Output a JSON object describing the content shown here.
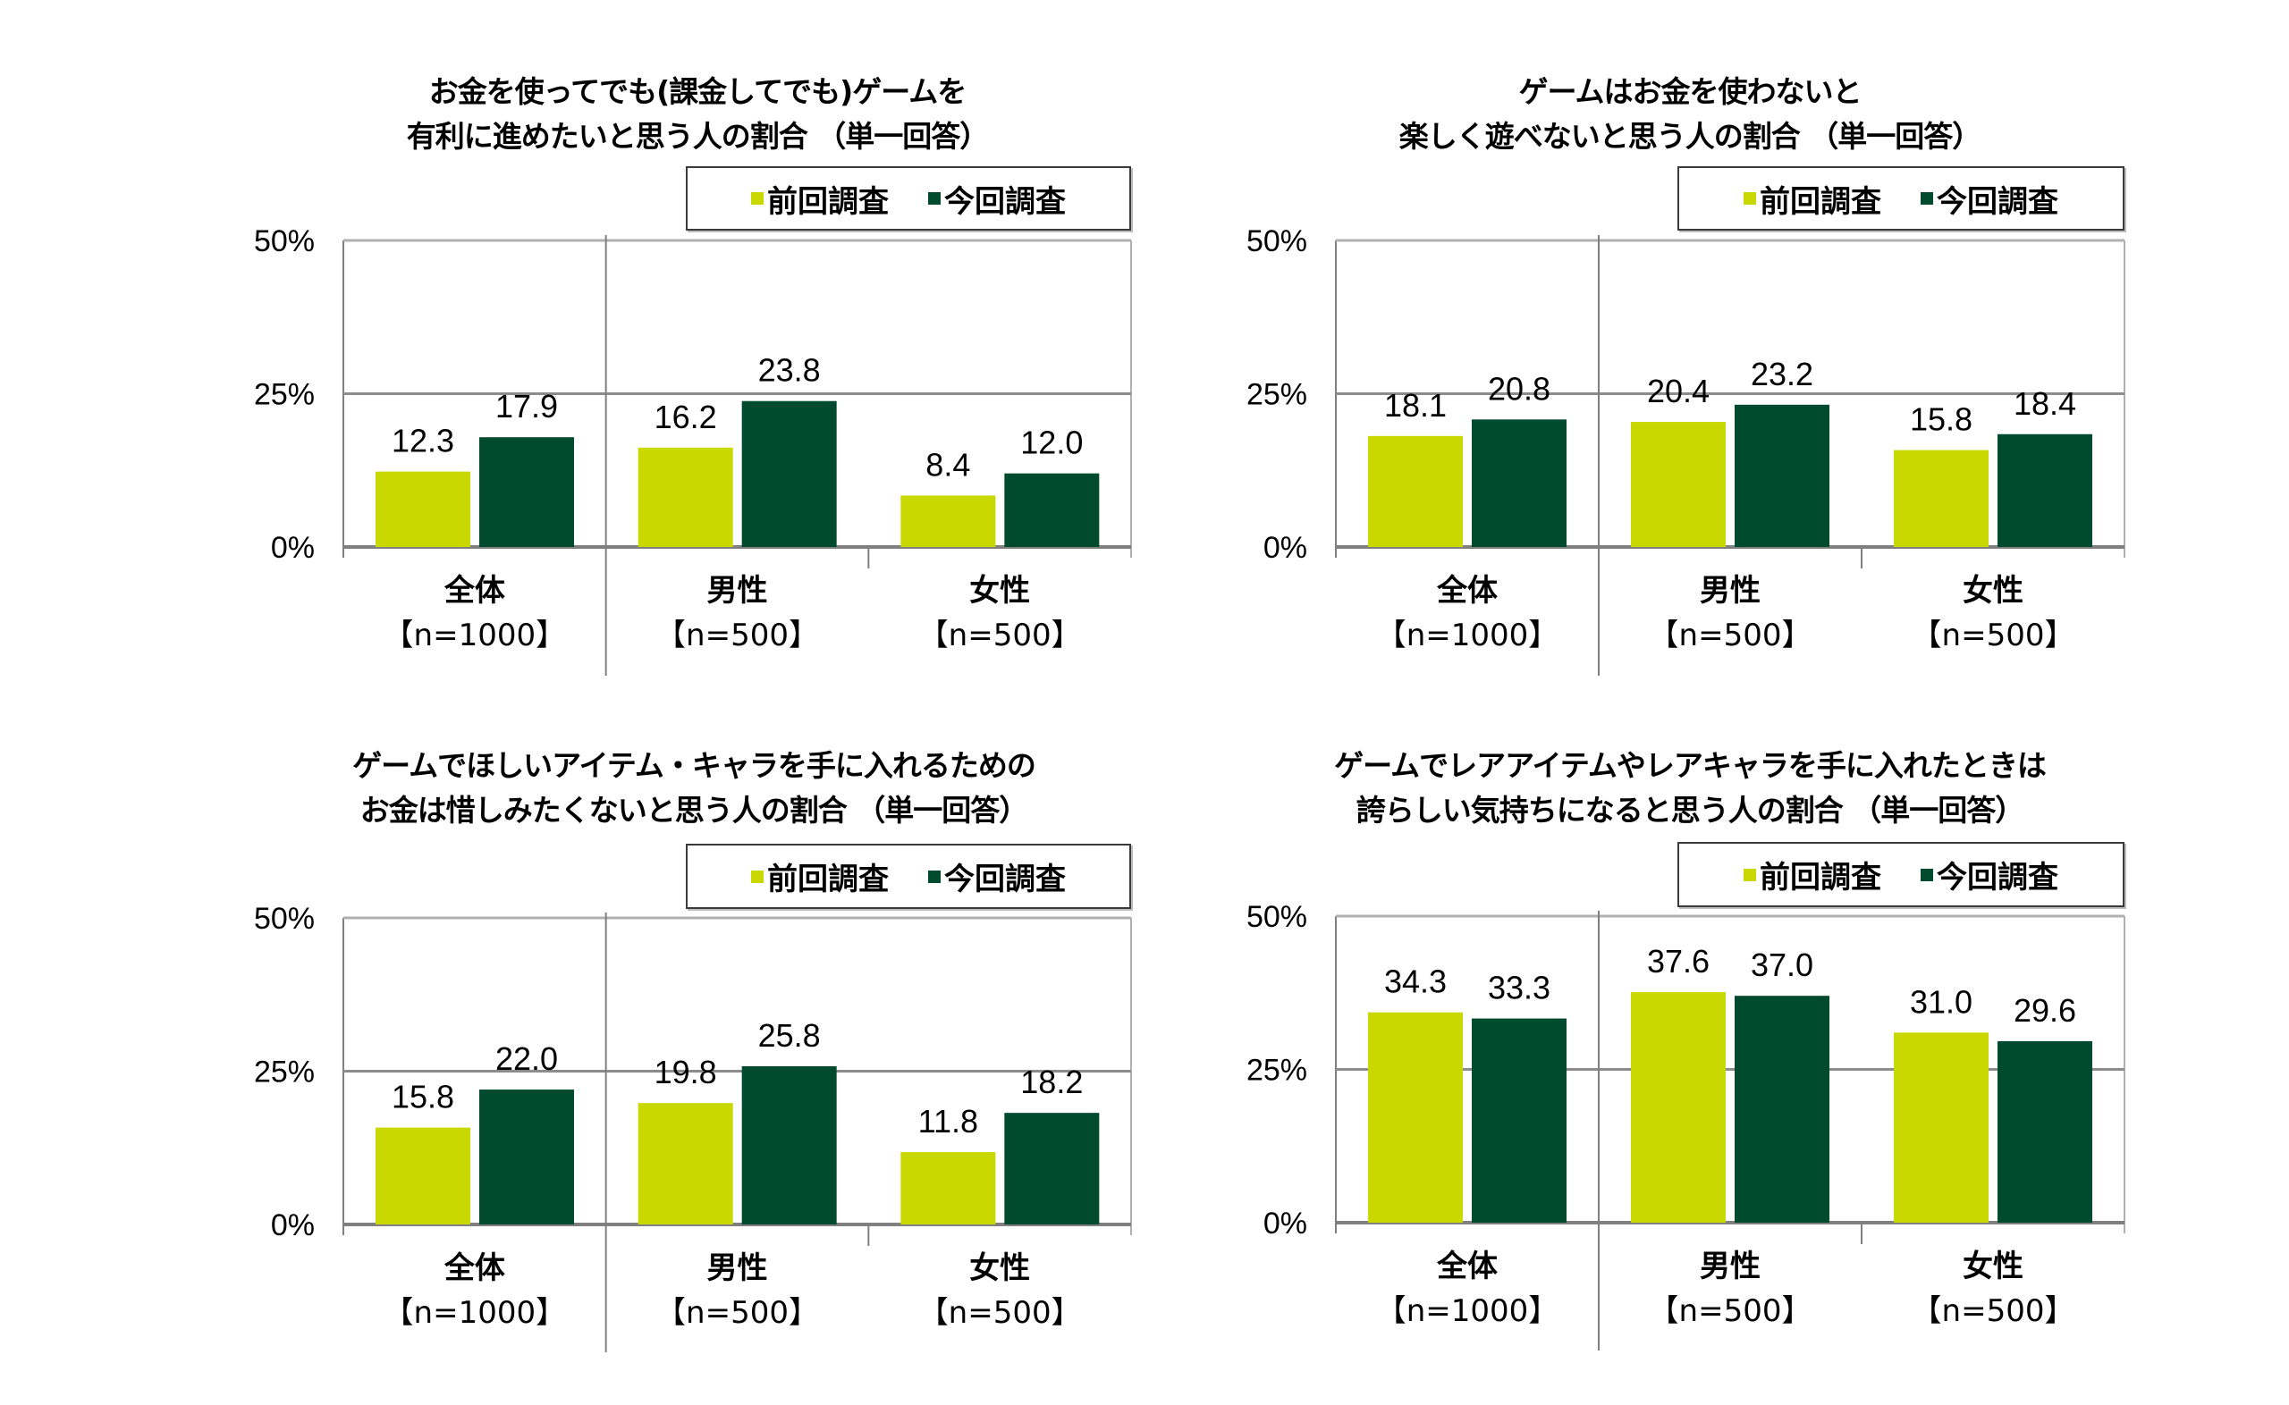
{
  "colors": {
    "previous": "#c8d800",
    "current": "#004a30",
    "grid": "#8c8c8c",
    "axis": "#7f7f7f"
  },
  "legend": {
    "previous": "前回調査",
    "current": "今回調査"
  },
  "chart_data": [
    {
      "type": "bar",
      "title_lines": [
        "お金を使ってでも(課金してでも)ゲームを",
        "有利に進めたいと思う人の割合 （単一回答）"
      ],
      "categories": [
        "全体",
        "男性",
        "女性"
      ],
      "category_n": [
        "【n=1000】",
        "【n=500】",
        "【n=500】"
      ],
      "series": [
        {
          "name": "前回調査",
          "values": [
            12.3,
            16.2,
            8.4
          ],
          "labels": [
            "12.3",
            "16.2",
            "8.4"
          ]
        },
        {
          "name": "今回調査",
          "values": [
            17.9,
            23.8,
            12.0
          ],
          "labels": [
            "17.9",
            "23.8",
            "12.0"
          ]
        }
      ],
      "yticks": [
        0,
        25,
        50
      ],
      "ytick_labels": [
        "0%",
        "25%",
        "50%"
      ],
      "ylim": [
        0,
        50
      ],
      "grid": true,
      "legend_position": "top-right"
    },
    {
      "type": "bar",
      "title_lines": [
        "ゲームはお金を使わないと",
        "楽しく遊べないと思う人の割合 （単一回答）"
      ],
      "categories": [
        "全体",
        "男性",
        "女性"
      ],
      "category_n": [
        "【n=1000】",
        "【n=500】",
        "【n=500】"
      ],
      "series": [
        {
          "name": "前回調査",
          "values": [
            18.1,
            20.4,
            15.8
          ],
          "labels": [
            "18.1",
            "20.4",
            "15.8"
          ]
        },
        {
          "name": "今回調査",
          "values": [
            20.8,
            23.2,
            18.4
          ],
          "labels": [
            "20.8",
            "23.2",
            "18.4"
          ]
        }
      ],
      "yticks": [
        0,
        25,
        50
      ],
      "ytick_labels": [
        "0%",
        "25%",
        "50%"
      ],
      "ylim": [
        0,
        50
      ],
      "grid": true,
      "legend_position": "top-right"
    },
    {
      "type": "bar",
      "title_lines": [
        "ゲームでほしいアイテム・キャラを手に入れるための",
        "お金は惜しみたくないと思う人の割合 （単一回答）"
      ],
      "categories": [
        "全体",
        "男性",
        "女性"
      ],
      "category_n": [
        "【n=1000】",
        "【n=500】",
        "【n=500】"
      ],
      "series": [
        {
          "name": "前回調査",
          "values": [
            15.8,
            19.8,
            11.8
          ],
          "labels": [
            "15.8",
            "19.8",
            "11.8"
          ]
        },
        {
          "name": "今回調査",
          "values": [
            22.0,
            25.8,
            18.2
          ],
          "labels": [
            "22.0",
            "25.8",
            "18.2"
          ]
        }
      ],
      "yticks": [
        0,
        25,
        50
      ],
      "ytick_labels": [
        "0%",
        "25%",
        "50%"
      ],
      "ylim": [
        0,
        50
      ],
      "grid": true,
      "legend_position": "top-right"
    },
    {
      "type": "bar",
      "title_lines": [
        "ゲームでレアアイテムやレアキャラを手に入れたときは",
        "誇らしい気持ちになると思う人の割合 （単一回答）"
      ],
      "categories": [
        "全体",
        "男性",
        "女性"
      ],
      "category_n": [
        "【n=1000】",
        "【n=500】",
        "【n=500】"
      ],
      "series": [
        {
          "name": "前回調査",
          "values": [
            34.3,
            37.6,
            31.0
          ],
          "labels": [
            "34.3",
            "37.6",
            "31.0"
          ]
        },
        {
          "name": "今回調査",
          "values": [
            33.3,
            37.0,
            29.6
          ],
          "labels": [
            "33.3",
            "37.0",
            "29.6"
          ]
        }
      ],
      "yticks": [
        0,
        25,
        50
      ],
      "ytick_labels": [
        "0%",
        "25%",
        "50%"
      ],
      "ylim": [
        0,
        50
      ],
      "grid": true,
      "legend_position": "top-right"
    }
  ]
}
